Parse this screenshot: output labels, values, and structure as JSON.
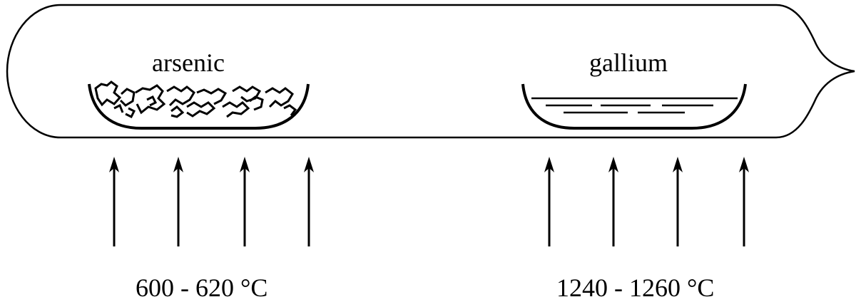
{
  "zones": [
    {
      "material": "arsenic",
      "temperature": "600 - 620 °C"
    },
    {
      "material": "gallium",
      "temperature": "1240 - 1260 °C"
    }
  ],
  "colors": {
    "stroke": "#000000",
    "background": "#ffffff"
  }
}
